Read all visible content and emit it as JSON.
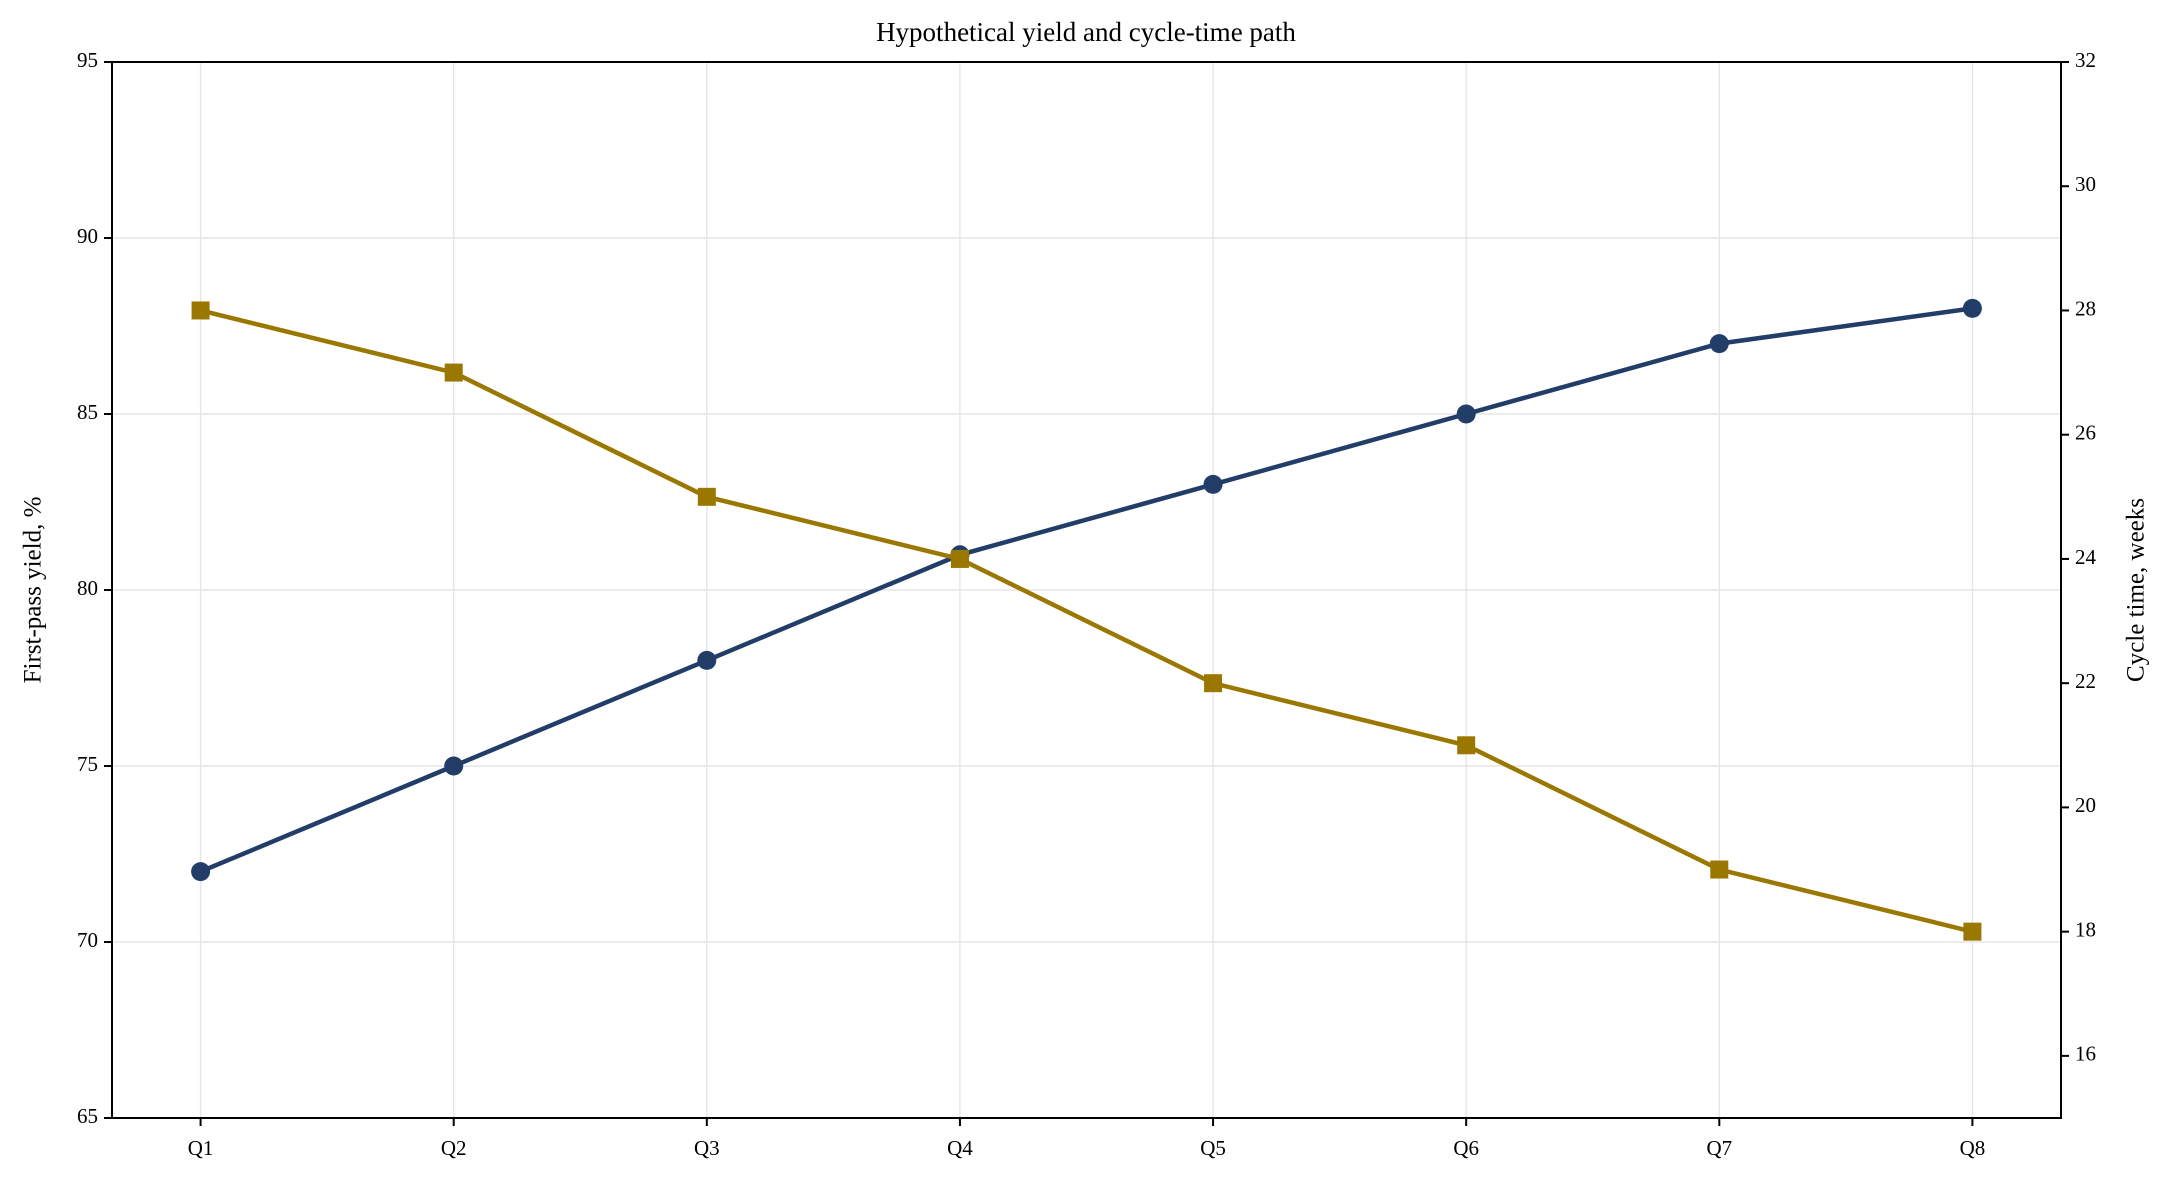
{
  "chart_data": {
    "type": "line",
    "title": "Hypothetical yield and cycle-time path",
    "categories": [
      "Q1",
      "Q2",
      "Q3",
      "Q4",
      "Q5",
      "Q6",
      "Q7",
      "Q8"
    ],
    "ylabel": "First-pass yield, %",
    "y2label": "Cycle time, weeks",
    "ylim": [
      65,
      95
    ],
    "yticks": [
      65,
      70,
      75,
      80,
      85,
      90,
      95
    ],
    "y2lim": [
      15,
      32
    ],
    "y2ticks": [
      16,
      18,
      20,
      22,
      24,
      26,
      28,
      30,
      32
    ],
    "grid": true,
    "series": [
      {
        "name": "First-pass yield",
        "color": "#213d68",
        "marker": "circle",
        "values": [
          72,
          75,
          78,
          81,
          83,
          85,
          87,
          88
        ]
      },
      {
        "name": "Cycle time",
        "color": "#9a7800",
        "marker": "square",
        "axis": "y2",
        "values": [
          28,
          27,
          25,
          24,
          22,
          21,
          19,
          18
        ]
      }
    ]
  }
}
